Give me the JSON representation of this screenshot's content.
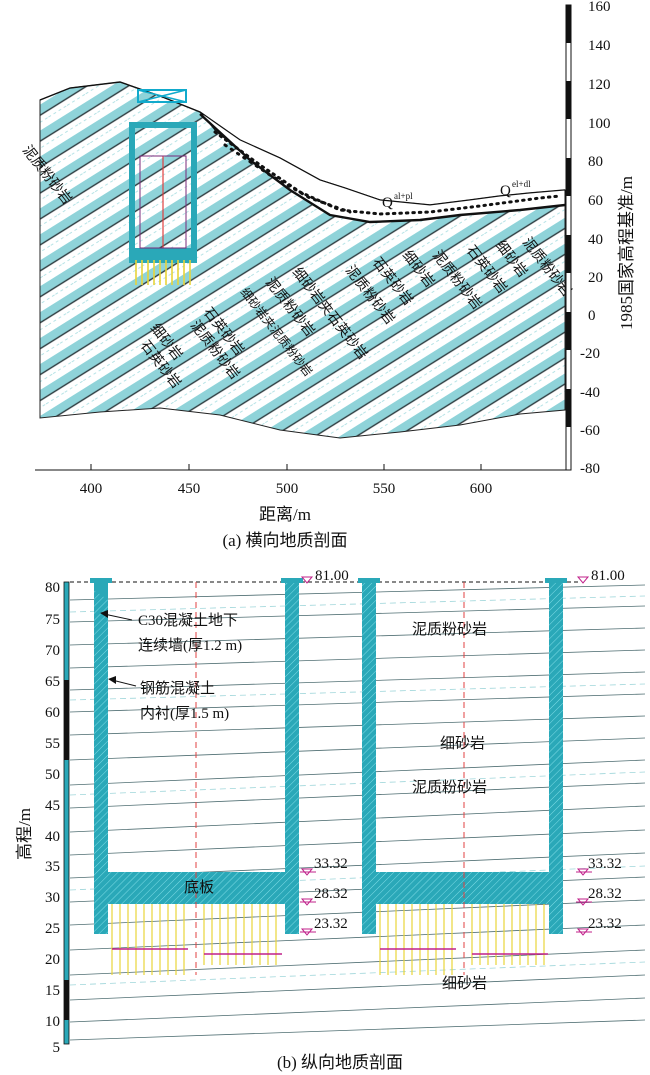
{
  "panel_a": {
    "caption": "(a) 横向地质剖面",
    "x_axis_label": "距离/m",
    "y_axis_label": "1985国家高程基准/m",
    "x_ticks": [
      "400",
      "450",
      "500",
      "550",
      "600"
    ],
    "y_ticks": [
      "160",
      "140",
      "120",
      "100",
      "80",
      "60",
      "40",
      "20",
      "0",
      "-20",
      "-40",
      "-60",
      "-80"
    ],
    "soil_labels": [
      "Q",
      "al+pl",
      "Q",
      "el+dl"
    ],
    "rock_labels": [
      "泥质粉砂岩",
      "细砂岩",
      "石英砂岩",
      "泥质粉砂岩",
      "石英砂岩",
      "细砂岩夹泥质粉砂岩",
      "泥质粉砂岩",
      "细砂岩夹石英砂岩",
      "泥质粉砂岩",
      "石英砂岩",
      "细砂岩",
      "泥质粉砂岩",
      "石英砂岩",
      "细砂岩",
      "泥质粉砂岩"
    ]
  },
  "panel_b": {
    "caption": "(b) 纵向地质剖面",
    "y_axis_label": "高程/m",
    "y_ticks": [
      "80",
      "75",
      "70",
      "65",
      "60",
      "55",
      "50",
      "45",
      "40",
      "35",
      "30",
      "25",
      "20",
      "15",
      "10",
      "5"
    ],
    "elevations": [
      "81.00",
      "81.00",
      "33.32",
      "28.32",
      "23.32",
      "33.32",
      "28.32",
      "23.32"
    ],
    "annotations": {
      "wall_1": "C30混凝土地下",
      "wall_2": "连续墙(厚1.2 m)",
      "lining_1": "钢筋混凝土",
      "lining_2": "内衬(厚1.5 m)",
      "base": "底板"
    },
    "rock_labels": [
      "泥质粉砂岩",
      "细砂岩",
      "泥质粉砂岩",
      "细砂岩"
    ]
  },
  "colors": {
    "concrete": "#2aa8b8",
    "rock_fill": "#7fcfd6",
    "pile": "#e8d43a",
    "magenta": "#c0208a",
    "centerline": "#e04040",
    "frame": "#11aacc"
  }
}
